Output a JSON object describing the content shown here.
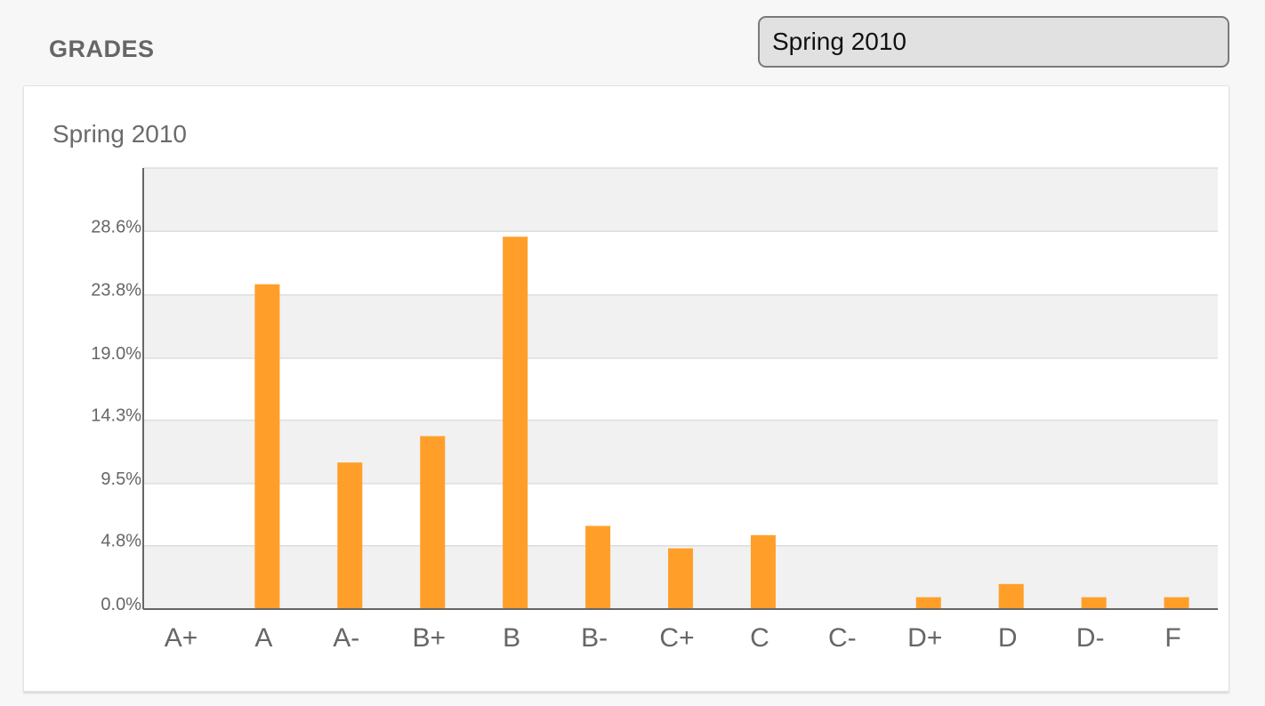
{
  "header": {
    "title": "GRADES",
    "term_selected": "Spring 2010"
  },
  "colors": {
    "bar": "#ff9f2a",
    "band": "#f1f1f1",
    "axis": "#666666"
  },
  "chart_data": {
    "type": "bar",
    "title": "Spring 2010",
    "xlabel": "",
    "ylabel": "",
    "categories": [
      "A+",
      "A",
      "A-",
      "B+",
      "B",
      "B-",
      "C+",
      "C",
      "C-",
      "D+",
      "D",
      "D-",
      "F"
    ],
    "values": [
      0.0,
      24.6,
      11.1,
      13.1,
      28.2,
      6.3,
      4.6,
      5.6,
      0.0,
      0.9,
      1.9,
      0.9,
      0.9
    ],
    "yticks": [
      "0.0%",
      "4.8%",
      "9.5%",
      "14.3%",
      "19.0%",
      "23.8%",
      "28.6%"
    ],
    "ytick_values": [
      0.0,
      4.8,
      9.5,
      14.3,
      19.0,
      23.8,
      28.6
    ],
    "ylim": [
      0,
      33.4
    ],
    "grid": true,
    "legend": "none"
  }
}
